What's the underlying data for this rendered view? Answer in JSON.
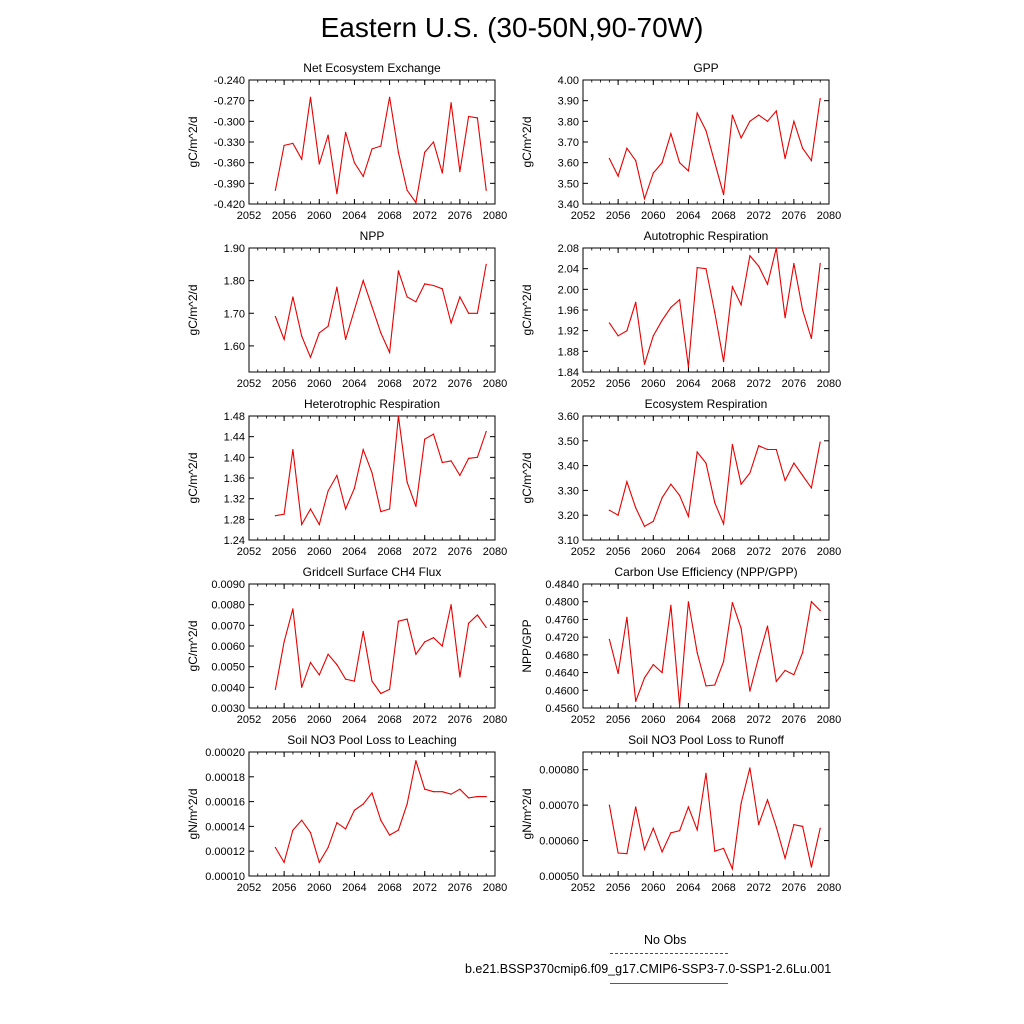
{
  "title": "Eastern U.S. (30-50N,90-70W)",
  "colors": {
    "series": "#e60000",
    "axis": "#000000",
    "legend_obs": "#3b3bd1"
  },
  "legend": {
    "obs_label": "No Obs",
    "case_label": "b.e21.BSSP370cmip6.f09_g17.CMIP6-SSP3-7.0-SSP1-2.6Lu.001"
  },
  "chart_data": [
    {
      "type": "line",
      "title": "Net Ecosystem Exchange",
      "ylabel": "gC/m^2/d",
      "xlim": [
        2052,
        2080
      ],
      "ylim": [
        -0.42,
        -0.24
      ],
      "xticks": [
        "2052",
        "2056",
        "2060",
        "2064",
        "2068",
        "2072",
        "2076",
        "2080"
      ],
      "yticks": [
        "-0.240",
        "-0.270",
        "-0.300",
        "-0.330",
        "-0.360",
        "-0.390",
        "-0.420"
      ],
      "x": [
        2055,
        2056,
        2057,
        2058,
        2059,
        2060,
        2061,
        2062,
        2063,
        2064,
        2065,
        2066,
        2067,
        2068,
        2069,
        2070,
        2071,
        2072,
        2073,
        2074,
        2075,
        2076,
        2077,
        2078,
        2079
      ],
      "values": [
        -0.4,
        -0.335,
        -0.332,
        -0.355,
        -0.265,
        -0.362,
        -0.32,
        -0.405,
        -0.316,
        -0.36,
        -0.38,
        -0.34,
        -0.336,
        -0.265,
        -0.345,
        -0.4,
        -0.418,
        -0.345,
        -0.33,
        -0.375,
        -0.273,
        -0.373,
        -0.293,
        -0.295,
        -0.4
      ]
    },
    {
      "type": "line",
      "title": "GPP",
      "ylabel": "gC/m^2/d",
      "xlim": [
        2052,
        2080
      ],
      "ylim": [
        3.4,
        4.0
      ],
      "xticks": [
        "2052",
        "2056",
        "2060",
        "2064",
        "2068",
        "2072",
        "2076",
        "2080"
      ],
      "yticks": [
        "4.00",
        "3.90",
        "3.80",
        "3.70",
        "3.60",
        "3.50",
        "3.40"
      ],
      "x": [
        2055,
        2056,
        2057,
        2058,
        2059,
        2060,
        2061,
        2062,
        2063,
        2064,
        2065,
        2066,
        2067,
        2068,
        2069,
        2070,
        2071,
        2072,
        2073,
        2074,
        2075,
        2076,
        2077,
        2078,
        2079
      ],
      "values": [
        3.62,
        3.535,
        3.67,
        3.61,
        3.425,
        3.55,
        3.6,
        3.74,
        3.6,
        3.56,
        3.84,
        3.755,
        3.6,
        3.445,
        3.83,
        3.72,
        3.8,
        3.83,
        3.8,
        3.85,
        3.62,
        3.8,
        3.67,
        3.61,
        3.91
      ]
    },
    {
      "type": "line",
      "title": "NPP",
      "ylabel": "gC/m^2/d",
      "xlim": [
        2052,
        2080
      ],
      "ylim": [
        1.52,
        1.9
      ],
      "xticks": [
        "2052",
        "2056",
        "2060",
        "2064",
        "2068",
        "2072",
        "2076",
        "2080"
      ],
      "yticks": [
        "1.90",
        "1.80",
        "1.70",
        "1.60"
      ],
      "x": [
        2055,
        2056,
        2057,
        2058,
        2059,
        2060,
        2061,
        2062,
        2063,
        2064,
        2065,
        2066,
        2067,
        2068,
        2069,
        2070,
        2071,
        2072,
        2073,
        2074,
        2075,
        2076,
        2077,
        2078,
        2079
      ],
      "values": [
        1.69,
        1.62,
        1.75,
        1.63,
        1.565,
        1.64,
        1.66,
        1.78,
        1.62,
        1.71,
        1.8,
        1.72,
        1.64,
        1.58,
        1.83,
        1.75,
        1.735,
        1.79,
        1.785,
        1.775,
        1.67,
        1.75,
        1.7,
        1.7,
        1.85
      ]
    },
    {
      "type": "line",
      "title": "Autotrophic Respiration",
      "ylabel": "gC/m^2/d",
      "xlim": [
        2052,
        2080
      ],
      "ylim": [
        1.84,
        2.08
      ],
      "xticks": [
        "2052",
        "2056",
        "2060",
        "2064",
        "2068",
        "2072",
        "2076",
        "2080"
      ],
      "yticks": [
        "2.08",
        "2.04",
        "2.00",
        "1.96",
        "1.92",
        "1.88",
        "1.84"
      ],
      "x": [
        2055,
        2056,
        2057,
        2058,
        2059,
        2060,
        2061,
        2062,
        2063,
        2064,
        2065,
        2066,
        2067,
        2068,
        2069,
        2070,
        2071,
        2072,
        2073,
        2074,
        2075,
        2076,
        2077,
        2078,
        2079
      ],
      "values": [
        1.935,
        1.91,
        1.92,
        1.975,
        1.855,
        1.91,
        1.94,
        1.965,
        1.98,
        1.85,
        2.042,
        2.04,
        1.955,
        1.86,
        2.005,
        1.97,
        2.065,
        2.045,
        2.01,
        2.08,
        1.945,
        2.05,
        1.96,
        1.905,
        2.05
      ]
    },
    {
      "type": "line",
      "title": "Heterotrophic Respiration",
      "ylabel": "gC/m^2/d",
      "xlim": [
        2052,
        2080
      ],
      "ylim": [
        1.24,
        1.48
      ],
      "xticks": [
        "2052",
        "2056",
        "2060",
        "2064",
        "2068",
        "2072",
        "2076",
        "2080"
      ],
      "yticks": [
        "1.48",
        "1.44",
        "1.40",
        "1.36",
        "1.32",
        "1.28",
        "1.24"
      ],
      "x": [
        2055,
        2056,
        2057,
        2058,
        2059,
        2060,
        2061,
        2062,
        2063,
        2064,
        2065,
        2066,
        2067,
        2068,
        2069,
        2070,
        2071,
        2072,
        2073,
        2074,
        2075,
        2076,
        2077,
        2078,
        2079
      ],
      "values": [
        1.287,
        1.29,
        1.415,
        1.27,
        1.3,
        1.27,
        1.335,
        1.365,
        1.3,
        1.34,
        1.415,
        1.37,
        1.295,
        1.3,
        1.48,
        1.352,
        1.305,
        1.435,
        1.445,
        1.39,
        1.393,
        1.365,
        1.398,
        1.4,
        1.45
      ]
    },
    {
      "type": "line",
      "title": "Ecosystem Respiration",
      "ylabel": "gC/m^2/d",
      "xlim": [
        2052,
        2080
      ],
      "ylim": [
        3.1,
        3.6
      ],
      "xticks": [
        "2052",
        "2056",
        "2060",
        "2064",
        "2068",
        "2072",
        "2076",
        "2080"
      ],
      "yticks": [
        "3.60",
        "3.50",
        "3.40",
        "3.30",
        "3.20",
        "3.10"
      ],
      "x": [
        2055,
        2056,
        2057,
        2058,
        2059,
        2060,
        2061,
        2062,
        2063,
        2064,
        2065,
        2066,
        2067,
        2068,
        2069,
        2070,
        2071,
        2072,
        2073,
        2074,
        2075,
        2076,
        2077,
        2078,
        2079
      ],
      "values": [
        3.22,
        3.2,
        3.335,
        3.23,
        3.155,
        3.175,
        3.27,
        3.325,
        3.28,
        3.195,
        3.455,
        3.41,
        3.25,
        3.165,
        3.485,
        3.325,
        3.37,
        3.48,
        3.465,
        3.465,
        3.34,
        3.41,
        3.36,
        3.31,
        3.495
      ]
    },
    {
      "type": "line",
      "title": "Gridcell Surface CH4 Flux",
      "ylabel": "gC/m^2/d",
      "xlim": [
        2052,
        2080
      ],
      "ylim": [
        0.003,
        0.009
      ],
      "xticks": [
        "2052",
        "2056",
        "2060",
        "2064",
        "2068",
        "2072",
        "2076",
        "2080"
      ],
      "yticks": [
        "0.0090",
        "0.0080",
        "0.0070",
        "0.0060",
        "0.0050",
        "0.0040",
        "0.0030"
      ],
      "x": [
        2055,
        2056,
        2057,
        2058,
        2059,
        2060,
        2061,
        2062,
        2063,
        2064,
        2065,
        2066,
        2067,
        2068,
        2069,
        2070,
        2071,
        2072,
        2073,
        2074,
        2075,
        2076,
        2077,
        2078,
        2079
      ],
      "values": [
        0.0039,
        0.0062,
        0.0078,
        0.004,
        0.0052,
        0.0046,
        0.0056,
        0.0051,
        0.0044,
        0.0043,
        0.0067,
        0.0043,
        0.0037,
        0.0039,
        0.0072,
        0.0073,
        0.0056,
        0.0062,
        0.0064,
        0.006,
        0.008,
        0.0045,
        0.0071,
        0.0075,
        0.0069
      ]
    },
    {
      "type": "line",
      "title": "Carbon Use Efficiency (NPP/GPP)",
      "ylabel": "NPP/GPP",
      "xlim": [
        2052,
        2080
      ],
      "ylim": [
        0.456,
        0.484
      ],
      "xticks": [
        "2052",
        "2056",
        "2060",
        "2064",
        "2068",
        "2072",
        "2076",
        "2080"
      ],
      "yticks": [
        "0.4840",
        "0.4800",
        "0.4760",
        "0.4720",
        "0.4680",
        "0.4640",
        "0.4600",
        "0.4560"
      ],
      "x": [
        2055,
        2056,
        2057,
        2058,
        2059,
        2060,
        2061,
        2062,
        2063,
        2064,
        2065,
        2066,
        2067,
        2068,
        2069,
        2070,
        2071,
        2072,
        2073,
        2074,
        2075,
        2076,
        2077,
        2078,
        2079
      ],
      "values": [
        0.4715,
        0.4638,
        0.4765,
        0.4575,
        0.4628,
        0.4658,
        0.464,
        0.4792,
        0.4565,
        0.48,
        0.4685,
        0.461,
        0.4612,
        0.4665,
        0.4798,
        0.474,
        0.4598,
        0.4675,
        0.4745,
        0.462,
        0.4645,
        0.4635,
        0.4685,
        0.48,
        0.478
      ]
    },
    {
      "type": "line",
      "title": "Soil NO3 Pool Loss to Leaching",
      "ylabel": "gN/m^2/d",
      "xlim": [
        2052,
        2080
      ],
      "ylim": [
        0.0001,
        0.0002
      ],
      "xticks": [
        "2052",
        "2056",
        "2060",
        "2064",
        "2068",
        "2072",
        "2076",
        "2080"
      ],
      "yticks": [
        "0.00020",
        "0.00018",
        "0.00016",
        "0.00014",
        "0.00012",
        "0.00010"
      ],
      "x": [
        2055,
        2056,
        2057,
        2058,
        2059,
        2060,
        2061,
        2062,
        2063,
        2064,
        2065,
        2066,
        2067,
        2068,
        2069,
        2070,
        2071,
        2072,
        2073,
        2074,
        2075,
        2076,
        2077,
        2078,
        2079
      ],
      "values": [
        0.000123,
        0.000111,
        0.000137,
        0.000145,
        0.000135,
        0.000111,
        0.000123,
        0.000143,
        0.000138,
        0.000153,
        0.000158,
        0.000167,
        0.000145,
        0.000133,
        0.000137,
        0.000158,
        0.000193,
        0.00017,
        0.000168,
        0.000168,
        0.000166,
        0.00017,
        0.000163,
        0.000164,
        0.000164
      ]
    },
    {
      "type": "line",
      "title": "Soil NO3 Pool Loss to Runoff",
      "ylabel": "gN/m^2/d",
      "xlim": [
        2052,
        2080
      ],
      "ylim": [
        0.0005,
        0.00085
      ],
      "xticks": [
        "2052",
        "2056",
        "2060",
        "2064",
        "2068",
        "2072",
        "2076",
        "2080"
      ],
      "yticks": [
        "0.00080",
        "0.00070",
        "0.00060",
        "0.00050"
      ],
      "x": [
        2055,
        2056,
        2057,
        2058,
        2059,
        2060,
        2061,
        2062,
        2063,
        2064,
        2065,
        2066,
        2067,
        2068,
        2069,
        2070,
        2071,
        2072,
        2073,
        2074,
        2075,
        2076,
        2077,
        2078,
        2079
      ],
      "values": [
        0.0007,
        0.000565,
        0.000563,
        0.000695,
        0.000575,
        0.000635,
        0.000568,
        0.000622,
        0.000628,
        0.000695,
        0.00063,
        0.00079,
        0.00057,
        0.000578,
        0.00052,
        0.000705,
        0.000805,
        0.000645,
        0.000715,
        0.000638,
        0.00055,
        0.000645,
        0.00064,
        0.000525,
        0.000635
      ]
    }
  ]
}
